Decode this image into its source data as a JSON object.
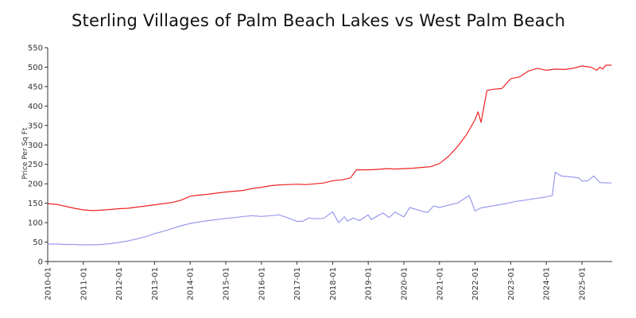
{
  "chart_data": {
    "type": "line",
    "title": "Sterling Villages of Palm Beach Lakes vs West Palm Beach",
    "xlabel": "",
    "ylabel": "Price Per Sq Ft",
    "ylim": [
      0,
      550
    ],
    "yticks": [
      0,
      50,
      100,
      150,
      200,
      250,
      300,
      350,
      400,
      450,
      500,
      550
    ],
    "xticks": [
      "2010-01",
      "2011-01",
      "2012-01",
      "2013-01",
      "2014-01",
      "2015-01",
      "2016-01",
      "2017-01",
      "2018-01",
      "2019-01",
      "2020-01",
      "2021-01",
      "2022-01",
      "2023-01",
      "2024-01",
      "2025-01"
    ],
    "x_range": [
      "2010-01",
      "2025-11"
    ],
    "grid": false,
    "legend": "none",
    "series": [
      {
        "color": "#ee2222",
        "points": [
          [
            "2010-01",
            149
          ],
          [
            "2010-04",
            147
          ],
          [
            "2010-07",
            142
          ],
          [
            "2010-10",
            137
          ],
          [
            "2011-01",
            133
          ],
          [
            "2011-04",
            131
          ],
          [
            "2011-07",
            132
          ],
          [
            "2011-10",
            134
          ],
          [
            "2012-01",
            136
          ],
          [
            "2012-04",
            137
          ],
          [
            "2012-07",
            140
          ],
          [
            "2012-10",
            143
          ],
          [
            "2013-01",
            146
          ],
          [
            "2013-04",
            149
          ],
          [
            "2013-07",
            152
          ],
          [
            "2013-10",
            158
          ],
          [
            "2014-01",
            168
          ],
          [
            "2014-04",
            171
          ],
          [
            "2014-07",
            173
          ],
          [
            "2014-10",
            176
          ],
          [
            "2015-01",
            179
          ],
          [
            "2015-04",
            181
          ],
          [
            "2015-07",
            183
          ],
          [
            "2015-10",
            188
          ],
          [
            "2016-01",
            191
          ],
          [
            "2016-04",
            195
          ],
          [
            "2016-07",
            197
          ],
          [
            "2016-10",
            198
          ],
          [
            "2017-01",
            199
          ],
          [
            "2017-04",
            198
          ],
          [
            "2017-07",
            200
          ],
          [
            "2017-10",
            202
          ],
          [
            "2018-01",
            208
          ],
          [
            "2018-04",
            210
          ],
          [
            "2018-07",
            215
          ],
          [
            "2018-09",
            236
          ],
          [
            "2019-01",
            236
          ],
          [
            "2019-04",
            237
          ],
          [
            "2019-07",
            239
          ],
          [
            "2019-10",
            238
          ],
          [
            "2020-01",
            239
          ],
          [
            "2020-04",
            240
          ],
          [
            "2020-07",
            242
          ],
          [
            "2020-10",
            244
          ],
          [
            "2021-01",
            252
          ],
          [
            "2021-04",
            270
          ],
          [
            "2021-07",
            295
          ],
          [
            "2021-10",
            325
          ],
          [
            "2022-01",
            365
          ],
          [
            "2022-02",
            385
          ],
          [
            "2022-03",
            358
          ],
          [
            "2022-05",
            440
          ],
          [
            "2022-07",
            443
          ],
          [
            "2022-10",
            445
          ],
          [
            "2023-01",
            470
          ],
          [
            "2023-04",
            475
          ],
          [
            "2023-07",
            490
          ],
          [
            "2023-10",
            497
          ],
          [
            "2024-01",
            492
          ],
          [
            "2024-04",
            495
          ],
          [
            "2024-07",
            494
          ],
          [
            "2024-10",
            497
          ],
          [
            "2025-01",
            503
          ],
          [
            "2025-04",
            500
          ],
          [
            "2025-06",
            492
          ],
          [
            "2025-07",
            500
          ],
          [
            "2025-08",
            495
          ],
          [
            "2025-09",
            505
          ],
          [
            "2025-11",
            505
          ]
        ]
      },
      {
        "color": "#9999ee",
        "points": [
          [
            "2010-01",
            45
          ],
          [
            "2010-04",
            45
          ],
          [
            "2010-07",
            44
          ],
          [
            "2010-10",
            44
          ],
          [
            "2011-01",
            43
          ],
          [
            "2011-04",
            43
          ],
          [
            "2011-07",
            44
          ],
          [
            "2011-10",
            46
          ],
          [
            "2012-01",
            49
          ],
          [
            "2012-04",
            53
          ],
          [
            "2012-07",
            58
          ],
          [
            "2012-10",
            64
          ],
          [
            "2013-01",
            72
          ],
          [
            "2013-04",
            78
          ],
          [
            "2013-07",
            85
          ],
          [
            "2013-10",
            92
          ],
          [
            "2014-01",
            98
          ],
          [
            "2014-04",
            102
          ],
          [
            "2014-07",
            105
          ],
          [
            "2014-10",
            108
          ],
          [
            "2015-01",
            111
          ],
          [
            "2015-04",
            113
          ],
          [
            "2015-07",
            116
          ],
          [
            "2015-10",
            118
          ],
          [
            "2016-01",
            116
          ],
          [
            "2016-04",
            118
          ],
          [
            "2016-07",
            120
          ],
          [
            "2016-10",
            112
          ],
          [
            "2017-01",
            103
          ],
          [
            "2017-03",
            104
          ],
          [
            "2017-05",
            112
          ],
          [
            "2017-07",
            110
          ],
          [
            "2017-10",
            111
          ],
          [
            "2018-01",
            128
          ],
          [
            "2018-03",
            100
          ],
          [
            "2018-05",
            115
          ],
          [
            "2018-06",
            104
          ],
          [
            "2018-08",
            112
          ],
          [
            "2018-10",
            105
          ],
          [
            "2019-01",
            120
          ],
          [
            "2019-02",
            108
          ],
          [
            "2019-04",
            117
          ],
          [
            "2019-06",
            125
          ],
          [
            "2019-08",
            113
          ],
          [
            "2019-10",
            127
          ],
          [
            "2020-01",
            115
          ],
          [
            "2020-03",
            139
          ],
          [
            "2020-06",
            132
          ],
          [
            "2020-09",
            126
          ],
          [
            "2020-11",
            143
          ],
          [
            "2021-01",
            139
          ],
          [
            "2021-04",
            145
          ],
          [
            "2021-07",
            150
          ],
          [
            "2021-09",
            160
          ],
          [
            "2021-11",
            170
          ],
          [
            "2022-01",
            130
          ],
          [
            "2022-03",
            138
          ],
          [
            "2022-06",
            142
          ],
          [
            "2022-09",
            146
          ],
          [
            "2022-12",
            150
          ],
          [
            "2023-03",
            155
          ],
          [
            "2023-06",
            158
          ],
          [
            "2023-09",
            162
          ],
          [
            "2023-12",
            165
          ],
          [
            "2024-03",
            170
          ],
          [
            "2024-04",
            230
          ],
          [
            "2024-06",
            220
          ],
          [
            "2024-09",
            218
          ],
          [
            "2024-12",
            215
          ],
          [
            "2025-01",
            207
          ],
          [
            "2025-03",
            208
          ],
          [
            "2025-05",
            220
          ],
          [
            "2025-07",
            203
          ],
          [
            "2025-11",
            202
          ]
        ]
      }
    ]
  }
}
